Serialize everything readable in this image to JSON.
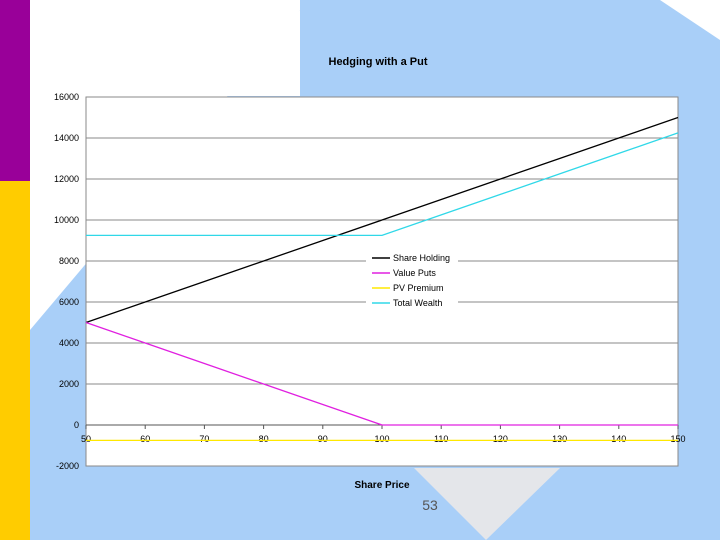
{
  "slide": {
    "number": "53",
    "colors": {
      "bar_top": "#990099",
      "bar_bottom": "#FFCC00",
      "background_blue": "#A9CFF8"
    }
  },
  "chart_data": {
    "type": "line",
    "title": "Hedging with a Put",
    "xlabel": "Share Price",
    "ylabel": "",
    "x": [
      50,
      60,
      70,
      80,
      90,
      100,
      110,
      120,
      130,
      140,
      150
    ],
    "xlim": [
      50,
      150
    ],
    "ylim": [
      -2000,
      16000
    ],
    "xticks": [
      "50",
      "60",
      "70",
      "80",
      "90",
      "100",
      "110",
      "120",
      "130",
      "140",
      "150"
    ],
    "yticks": [
      "16000",
      "14000",
      "12000",
      "10000",
      "8000",
      "6000",
      "4000",
      "2000",
      "0",
      "-2000"
    ],
    "grid": "horizontal",
    "legend_position": "center",
    "series": [
      {
        "name": "Share Holding",
        "color": "#000000",
        "values": [
          5000,
          6000,
          7000,
          8000,
          9000,
          10000,
          11000,
          12000,
          13000,
          14000,
          15000
        ]
      },
      {
        "name": "Value Puts",
        "color": "#E020E0",
        "values": [
          5000,
          4000,
          3000,
          2000,
          1000,
          0,
          0,
          0,
          0,
          0,
          0
        ]
      },
      {
        "name": "PV Premium",
        "color": "#FFE800",
        "values": [
          -750,
          -750,
          -750,
          -750,
          -750,
          -750,
          -750,
          -750,
          -750,
          -750,
          -750
        ]
      },
      {
        "name": "Total Wealth",
        "color": "#30D8E8",
        "values": [
          9250,
          9250,
          9250,
          9250,
          9250,
          9250,
          10250,
          11250,
          12250,
          13250,
          14250
        ]
      }
    ]
  }
}
